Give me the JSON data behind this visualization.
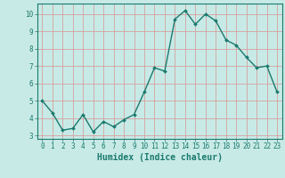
{
  "x": [
    0,
    1,
    2,
    3,
    4,
    5,
    6,
    7,
    8,
    9,
    10,
    11,
    12,
    13,
    14,
    15,
    16,
    17,
    18,
    19,
    20,
    21,
    22,
    23
  ],
  "y": [
    5.0,
    4.3,
    3.3,
    3.4,
    4.2,
    3.2,
    3.8,
    3.5,
    3.9,
    4.2,
    5.5,
    6.9,
    6.7,
    9.7,
    10.2,
    9.4,
    10.0,
    9.6,
    8.5,
    8.2,
    7.5,
    6.9,
    7.0,
    5.5
  ],
  "line_color": "#1a7a6e",
  "marker": "D",
  "marker_size": 2.0,
  "bg_color": "#c8eae6",
  "grid_color": "#d4a0a0",
  "xlabel": "Humidex (Indice chaleur)",
  "xlim": [
    -0.5,
    23.5
  ],
  "ylim": [
    2.8,
    10.6
  ],
  "xticks": [
    0,
    1,
    2,
    3,
    4,
    5,
    6,
    7,
    8,
    9,
    10,
    11,
    12,
    13,
    14,
    15,
    16,
    17,
    18,
    19,
    20,
    21,
    22,
    23
  ],
  "yticks": [
    3,
    4,
    5,
    6,
    7,
    8,
    9,
    10
  ],
  "tick_fontsize": 5.5,
  "xlabel_fontsize": 7.0,
  "line_width": 1.0
}
